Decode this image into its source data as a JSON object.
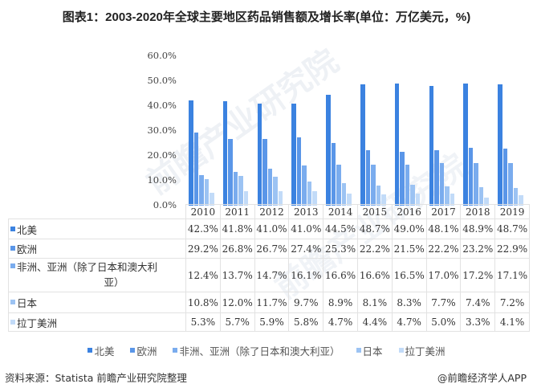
{
  "title": "图表1：2003-2020年全球主要地区药品销售额及增长率(单位：万亿美元，%)",
  "watermark": "前瞻产业研究院",
  "chart_data": {
    "type": "bar",
    "title": "图表1：2003-2020年全球主要地区药品销售额及增长率(单位：万亿美元，%)",
    "xlabel": "",
    "ylabel": "",
    "ylim": [
      0,
      60
    ],
    "yticks": [
      "0.0%",
      "10.0%",
      "20.0%",
      "30.0%",
      "40.0%",
      "50.0%",
      "60.0%"
    ],
    "grid": false,
    "legend_position": "bottom",
    "categories": [
      "2010",
      "2011",
      "2012",
      "2013",
      "2014",
      "2015",
      "2016",
      "2017",
      "2018",
      "2019"
    ],
    "series": [
      {
        "name": "北美",
        "color": "#3b82e0",
        "values": [
          42.3,
          41.8,
          41.0,
          41.0,
          44.5,
          48.7,
          49.0,
          48.1,
          48.9,
          48.7
        ]
      },
      {
        "name": "欧洲",
        "color": "#5a96e8",
        "values": [
          29.2,
          26.8,
          26.7,
          27.4,
          25.3,
          22.2,
          21.5,
          22.2,
          23.2,
          22.9
        ]
      },
      {
        "name": "非洲、亚洲（除了日本和澳大利亚）",
        "color": "#7aacee",
        "values": [
          12.4,
          13.7,
          14.7,
          16.1,
          16.6,
          16.6,
          16.5,
          17.0,
          17.2,
          17.1
        ]
      },
      {
        "name": "日本",
        "color": "#9cc3f3",
        "values": [
          10.8,
          12.0,
          11.7,
          9.7,
          8.9,
          8.1,
          8.3,
          7.7,
          7.4,
          7.2
        ]
      },
      {
        "name": "拉丁美洲",
        "color": "#c2dbf8",
        "values": [
          5.3,
          5.7,
          5.9,
          5.8,
          4.7,
          4.4,
          4.7,
          5.0,
          3.3,
          4.1
        ]
      }
    ]
  },
  "table": {
    "rows": [
      {
        "label": "北美",
        "values": [
          "42.3%",
          "41.8%",
          "41.0%",
          "41.0%",
          "44.5%",
          "48.7%",
          "49.0%",
          "48.1%",
          "48.9%",
          "48.7%"
        ]
      },
      {
        "label": "欧洲",
        "values": [
          "29.2%",
          "26.8%",
          "26.7%",
          "27.4%",
          "25.3%",
          "22.2%",
          "21.5%",
          "22.2%",
          "23.2%",
          "22.9%"
        ]
      },
      {
        "label": "非洲、亚洲（除了日本和澳大利",
        "label2": "亚）",
        "values": [
          "12.4%",
          "13.7%",
          "14.7%",
          "16.1%",
          "16.6%",
          "16.6%",
          "16.5%",
          "17.0%",
          "17.2%",
          "17.1%"
        ]
      },
      {
        "label": "日本",
        "values": [
          "10.8%",
          "12.0%",
          "11.7%",
          "9.7%",
          "8.9%",
          "8.1%",
          "8.3%",
          "7.7%",
          "7.4%",
          "7.2%"
        ]
      },
      {
        "label": "拉丁美洲",
        "values": [
          "5.3%",
          "5.7%",
          "5.9%",
          "5.8%",
          "4.7%",
          "4.4%",
          "4.7%",
          "5.0%",
          "3.3%",
          "4.1%"
        ]
      }
    ]
  },
  "footer": {
    "source": "资料来源：Statista 前瞻产业研究院整理",
    "credit": "@前瞻经济学人APP"
  }
}
